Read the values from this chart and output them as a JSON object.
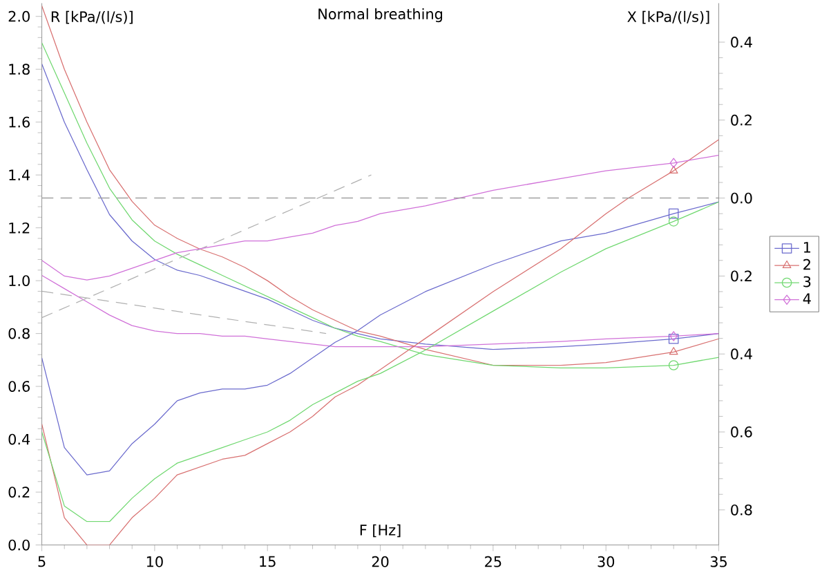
{
  "chart_data": {
    "type": "line",
    "title": "Normal breathing",
    "xlabel": "F [Hz]",
    "ylabel": "R [kPa/(l/s)]",
    "y2label": "X [kPa/(l/s)]",
    "xlim": [
      5,
      35
    ],
    "xticks": [
      5,
      10,
      15,
      20,
      25,
      30,
      35
    ],
    "ylim": [
      0,
      2.05
    ],
    "yticks": [
      {
        "value": 0,
        "label": "0.0"
      },
      {
        "value": 0.2,
        "label": "0.2"
      },
      {
        "value": 0.4,
        "label": "0.4"
      },
      {
        "value": 0.6,
        "label": "0.6"
      },
      {
        "value": 0.8,
        "label": "0.8"
      },
      {
        "value": 1,
        "label": "1.0"
      },
      {
        "value": 1.2,
        "label": "1.2"
      },
      {
        "value": 1.4,
        "label": "1.4"
      },
      {
        "value": 1.6,
        "label": "1.6"
      },
      {
        "value": 1.8,
        "label": "1.8"
      },
      {
        "value": 2,
        "label": "2.0"
      }
    ],
    "y2lim": [
      -0.89,
      0.5
    ],
    "y2ticks": [
      0.4,
      0.2,
      {
        "value": 0,
        "label": "0.0"
      },
      {
        "value": -0.2,
        "label": "0.2"
      },
      {
        "value": -0.4,
        "label": "0.4"
      },
      {
        "value": -0.6,
        "label": "0.6"
      },
      {
        "value": -0.8,
        "label": "0.8"
      }
    ],
    "grid": false,
    "legend": "right",
    "ref_lines": [
      {
        "axis": "y2",
        "value": 0,
        "color": "#a0a0a0",
        "line_style": "dashed"
      }
    ],
    "series": [
      {
        "axis": "y",
        "color": "#6a6acd",
        "x": [
          5,
          6,
          7,
          8,
          9,
          10,
          11,
          12,
          13,
          14,
          15,
          16,
          17,
          18,
          19,
          20,
          22,
          25,
          28,
          30,
          33,
          35
        ],
        "values": [
          1.82,
          1.6,
          1.42,
          1.25,
          1.15,
          1.08,
          1.04,
          1.02,
          0.99,
          0.96,
          0.93,
          0.89,
          0.85,
          0.82,
          0.8,
          0.78,
          0.76,
          0.74,
          0.75,
          0.76,
          0.78,
          0.8
        ]
      },
      {
        "axis": "y",
        "color": "#d87070",
        "x": [
          5,
          6,
          7,
          8,
          9,
          10,
          11,
          12,
          13,
          14,
          15,
          16,
          17,
          18,
          19,
          20,
          22,
          25,
          28,
          30,
          33,
          35
        ],
        "values": [
          2.04,
          1.8,
          1.6,
          1.42,
          1.3,
          1.21,
          1.16,
          1.12,
          1.09,
          1.05,
          1.0,
          0.94,
          0.89,
          0.85,
          0.81,
          0.79,
          0.74,
          0.68,
          0.68,
          0.69,
          0.73,
          0.78
        ]
      },
      {
        "axis": "y",
        "color": "#70d870",
        "x": [
          5,
          6,
          7,
          8,
          9,
          10,
          11,
          12,
          13,
          14,
          15,
          16,
          17,
          18,
          19,
          20,
          22,
          25,
          28,
          30,
          33,
          35
        ],
        "values": [
          1.9,
          1.71,
          1.52,
          1.35,
          1.23,
          1.15,
          1.1,
          1.06,
          1.02,
          0.98,
          0.94,
          0.9,
          0.86,
          0.82,
          0.79,
          0.77,
          0.72,
          0.68,
          0.67,
          0.67,
          0.68,
          0.71
        ]
      },
      {
        "axis": "y",
        "color": "#d070d8",
        "x": [
          5,
          6,
          7,
          8,
          9,
          10,
          11,
          12,
          13,
          14,
          15,
          16,
          17,
          18,
          19,
          20,
          22,
          25,
          28,
          30,
          33,
          35
        ],
        "values": [
          1.02,
          0.97,
          0.92,
          0.87,
          0.83,
          0.81,
          0.8,
          0.8,
          0.79,
          0.79,
          0.78,
          0.77,
          0.76,
          0.75,
          0.75,
          0.75,
          0.75,
          0.76,
          0.77,
          0.78,
          0.79,
          0.8
        ]
      },
      {
        "axis": "y2",
        "color": "#6a6acd",
        "x": [
          5,
          6,
          7,
          8,
          9,
          10,
          11,
          12,
          13,
          14,
          15,
          16,
          17,
          18,
          19,
          20,
          22,
          25,
          28,
          30,
          33,
          35
        ],
        "values": [
          -0.41,
          -0.64,
          -0.71,
          -0.7,
          -0.63,
          -0.58,
          -0.52,
          -0.5,
          -0.49,
          -0.49,
          -0.48,
          -0.45,
          -0.41,
          -0.37,
          -0.34,
          -0.3,
          -0.24,
          -0.17,
          -0.11,
          -0.09,
          -0.04,
          -0.01
        ]
      },
      {
        "axis": "y2",
        "color": "#d87070",
        "x": [
          5,
          6,
          7,
          8,
          9,
          10,
          11,
          12,
          13,
          14,
          15,
          16,
          17,
          18,
          19,
          20,
          22,
          25,
          28,
          30,
          31,
          33,
          35
        ],
        "values": [
          -0.58,
          -0.82,
          -0.89,
          -0.89,
          -0.82,
          -0.77,
          -0.71,
          -0.69,
          -0.67,
          -0.66,
          -0.63,
          -0.6,
          -0.56,
          -0.51,
          -0.48,
          -0.44,
          -0.36,
          -0.24,
          -0.13,
          -0.04,
          0.0,
          0.07,
          0.15
        ]
      },
      {
        "axis": "y2",
        "color": "#70d870",
        "x": [
          5,
          6,
          7,
          8,
          9,
          10,
          11,
          12,
          13,
          14,
          15,
          16,
          17,
          18,
          19,
          20,
          22,
          25,
          28,
          30,
          33,
          35
        ],
        "values": [
          -0.6,
          -0.79,
          -0.83,
          -0.83,
          -0.77,
          -0.72,
          -0.68,
          -0.66,
          -0.64,
          -0.62,
          -0.6,
          -0.57,
          -0.53,
          -0.5,
          -0.47,
          -0.45,
          -0.39,
          -0.29,
          -0.19,
          -0.13,
          -0.06,
          -0.01
        ]
      },
      {
        "axis": "y2",
        "color": "#d070d8",
        "x": [
          5,
          6,
          7,
          8,
          9,
          10,
          11,
          12,
          13,
          14,
          15,
          16,
          17,
          18,
          19,
          20,
          22,
          25,
          28,
          30,
          33,
          35
        ],
        "values": [
          -0.16,
          -0.2,
          -0.21,
          -0.2,
          -0.18,
          -0.16,
          -0.14,
          -0.13,
          -0.12,
          -0.11,
          -0.11,
          -0.1,
          -0.09,
          -0.07,
          -0.06,
          -0.04,
          -0.02,
          0.02,
          0.05,
          0.07,
          0.09,
          0.11
        ]
      },
      {
        "axis": "y",
        "color": "#b0b0b0",
        "line_style": "dashed",
        "x": [
          5,
          19.6
        ],
        "values": [
          0.86,
          1.4
        ]
      },
      {
        "axis": "y",
        "color": "#b0b0b0",
        "line_style": "dashed",
        "x": [
          5,
          17.6
        ],
        "values": [
          0.96,
          0.8
        ]
      },
      {
        "type": "scatter",
        "name": "1",
        "axis": "y",
        "color": "#6a6acd",
        "marker": "square",
        "x": [
          33
        ],
        "values": [
          0.78
        ]
      },
      {
        "type": "scatter",
        "name": "2",
        "axis": "y",
        "color": "#d87070",
        "marker": "triangle",
        "x": [
          33
        ],
        "values": [
          0.73
        ]
      },
      {
        "type": "scatter",
        "name": "3",
        "axis": "y",
        "color": "#70d870",
        "marker": "circle",
        "x": [
          33
        ],
        "values": [
          0.68
        ]
      },
      {
        "type": "scatter",
        "name": "4",
        "axis": "y",
        "color": "#d070d8",
        "marker": "diamond",
        "x": [
          33
        ],
        "values": [
          0.79
        ]
      },
      {
        "type": "scatter",
        "axis": "y2",
        "color": "#6a6acd",
        "marker": "square",
        "x": [
          33
        ],
        "values": [
          -0.04
        ]
      },
      {
        "type": "scatter",
        "axis": "y2",
        "color": "#d87070",
        "marker": "triangle",
        "x": [
          33
        ],
        "values": [
          0.07
        ]
      },
      {
        "type": "scatter",
        "axis": "y2",
        "color": "#70d870",
        "marker": "circle",
        "x": [
          33
        ],
        "values": [
          -0.06
        ]
      },
      {
        "type": "scatter",
        "axis": "y2",
        "color": "#d070d8",
        "marker": "diamond",
        "x": [
          33
        ],
        "values": [
          0.09
        ]
      }
    ]
  }
}
